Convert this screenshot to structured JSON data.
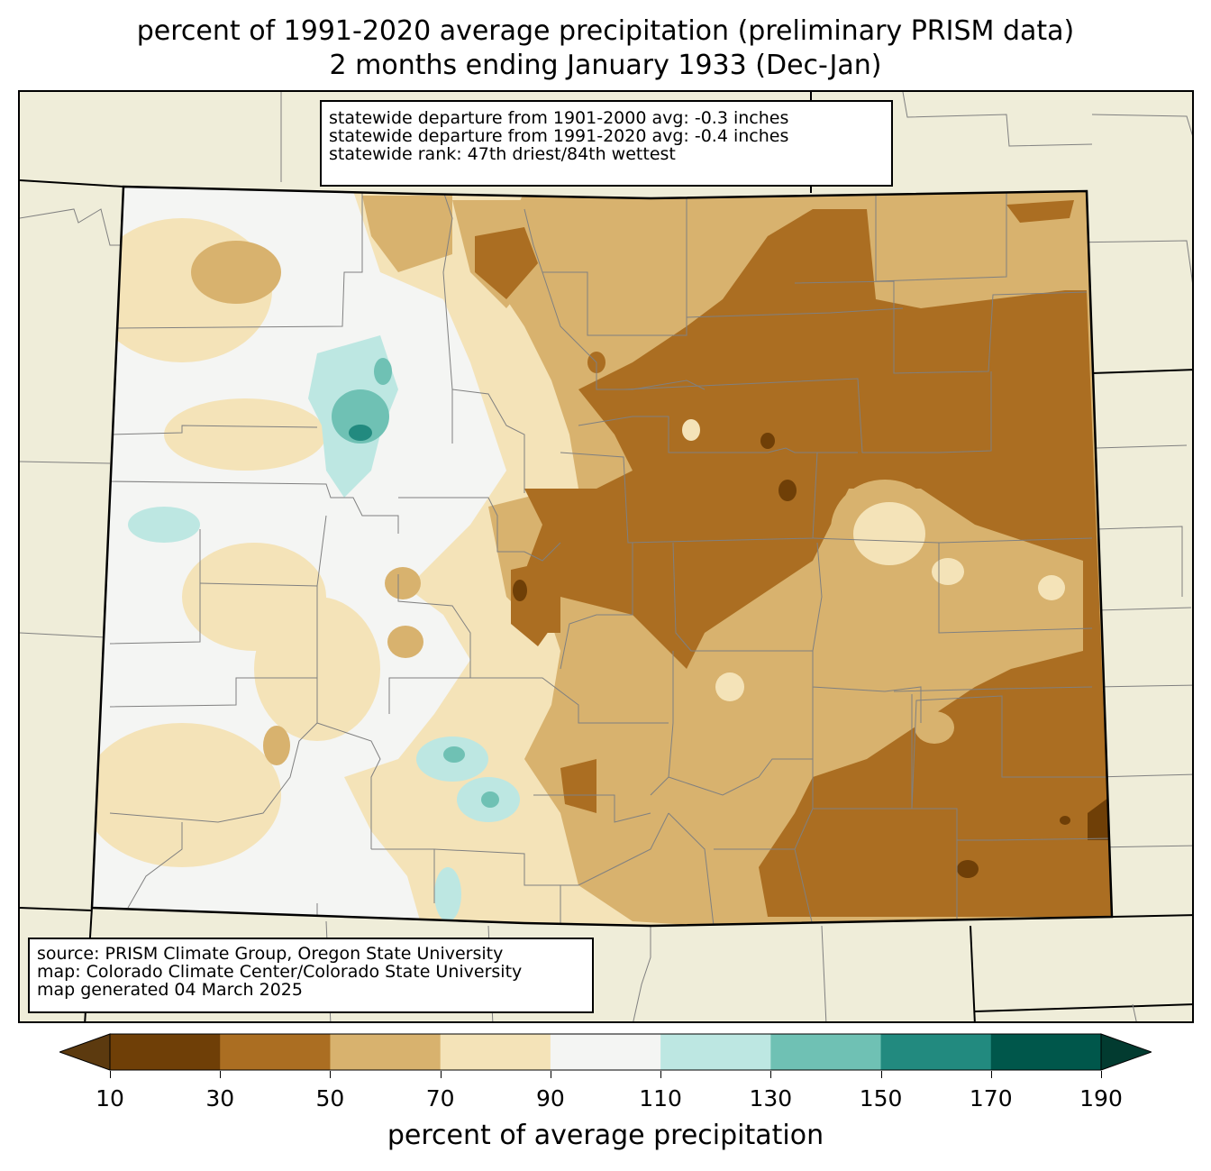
{
  "title": {
    "line1": "percent of 1991-2020 average precipitation (preliminary PRISM data)",
    "line2": "2 months ending January 1933 (Dec-Jan)"
  },
  "stats": {
    "line1": "statewide departure from 1901-2000 avg: -0.3 inches",
    "line2": "statewide departure from 1991-2020 avg: -0.4 inches",
    "line3": "statewide rank: 47th driest/84th wettest"
  },
  "source": {
    "line1": "source: PRISM Climate Group, Oregon State University",
    "line2": "map: Colorado Climate Center/Colorado State University",
    "line3": "map generated 04 March 2025"
  },
  "legend": {
    "label": "percent of average precipitation",
    "ticks": [
      "10",
      "30",
      "50",
      "70",
      "90",
      "110",
      "130",
      "150",
      "170",
      "190"
    ],
    "colors": [
      "#5c3a0f",
      "#6f3f07",
      "#ab6e22",
      "#d8b26e",
      "#f4e3b8",
      "#f4f5f3",
      "#bde7e2",
      "#6fc1b4",
      "#228a7f",
      "#00574b",
      "#023b30"
    ],
    "extend": "both"
  },
  "map": {
    "background_color": "#efedd9",
    "state_outline_color": "#000000",
    "county_line_color": "#808080"
  }
}
